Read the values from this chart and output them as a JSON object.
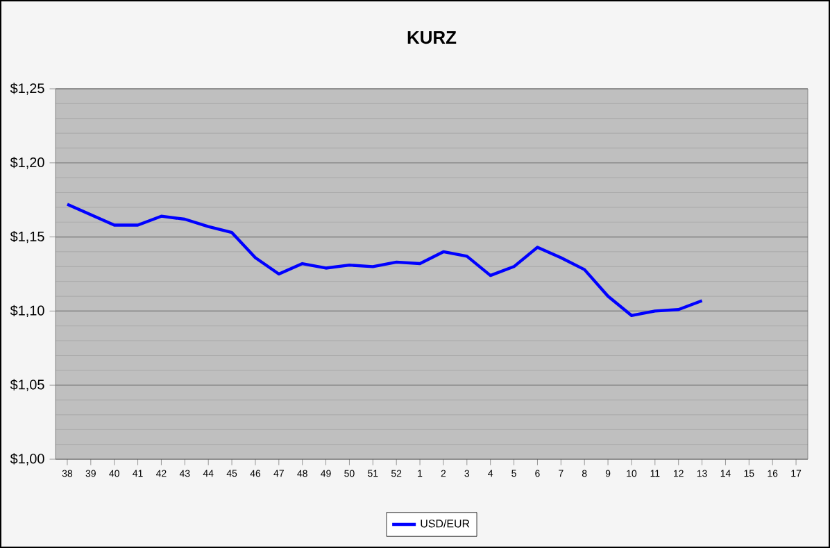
{
  "chart_data": {
    "type": "line",
    "title": "KURZ",
    "categories": [
      "38",
      "39",
      "40",
      "41",
      "42",
      "43",
      "44",
      "45",
      "46",
      "47",
      "48",
      "49",
      "50",
      "51",
      "52",
      "1",
      "2",
      "3",
      "4",
      "5",
      "6",
      "7",
      "8",
      "9",
      "10",
      "11",
      "12",
      "13",
      "14",
      "15",
      "16",
      "17"
    ],
    "series": [
      {
        "name": "USD/EUR",
        "color": "#0000ff",
        "values": [
          1.172,
          1.165,
          1.158,
          1.158,
          1.164,
          1.162,
          1.157,
          1.153,
          1.136,
          1.125,
          1.132,
          1.129,
          1.131,
          1.13,
          1.133,
          1.132,
          1.14,
          1.137,
          1.124,
          1.13,
          1.143,
          1.136,
          1.128,
          1.11,
          1.097,
          1.1,
          1.101,
          1.107,
          null,
          null,
          null,
          null
        ]
      }
    ],
    "ylim": [
      1.0,
      1.25
    ],
    "yticks": [
      {
        "value": 1.0,
        "label": "$1,00"
      },
      {
        "value": 1.05,
        "label": "$1,05"
      },
      {
        "value": 1.1,
        "label": "$1,10"
      },
      {
        "value": 1.15,
        "label": "$1,15"
      },
      {
        "value": 1.2,
        "label": "$1,20"
      },
      {
        "value": 1.25,
        "label": "$1,25"
      }
    ],
    "grid": "y",
    "legend": "bottom",
    "marker": "none",
    "line_style": "solid"
  }
}
